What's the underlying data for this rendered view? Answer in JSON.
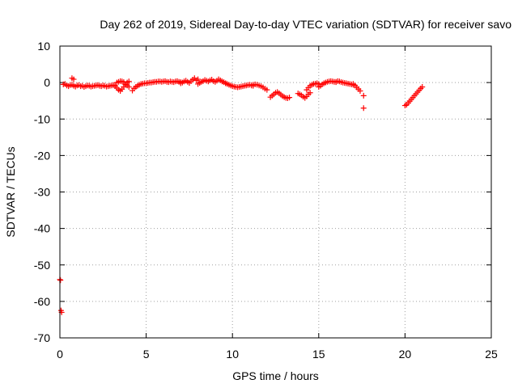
{
  "chart_data": {
    "type": "scatter",
    "title": "Day 262 of 2019, Sidereal Day-to-day VTEC variation (SDTVAR) for receiver savo",
    "xlabel": "GPS time / hours",
    "ylabel": "SDTVAR / TECUs",
    "xlim": [
      0,
      25
    ],
    "ylim": [
      -70,
      10
    ],
    "xticks": [
      0,
      5,
      10,
      15,
      20,
      25
    ],
    "yticks": [
      10,
      0,
      -10,
      -20,
      -30,
      -40,
      -50,
      -60,
      -70
    ],
    "grid": true,
    "legend": "none",
    "marker": "plus",
    "color": "#ff0000",
    "series": [
      {
        "name": "SDTVAR",
        "segments": [
          {
            "x_start": 0.0,
            "x_end": 0.1,
            "y": [
              -54.0,
              -54.2,
              -62.5,
              -63.0
            ],
            "step": 0.05
          },
          {
            "x_start": 0.2,
            "x_end": 3.2,
            "y": [
              -0.5,
              -0.4,
              -0.8,
              -1.0,
              -0.7,
              -0.6,
              -0.9,
              -1.1,
              -0.8,
              -0.7,
              -1.0,
              -0.9,
              -1.2,
              -1.0,
              -0.8,
              -0.9,
              -1.1,
              -1.0,
              -0.9,
              -0.8,
              -0.7,
              -0.9,
              -1.0,
              -0.8,
              -0.9,
              -1.1,
              -1.0,
              -0.9,
              -0.8,
              -0.7,
              -0.9
            ]
          },
          {
            "x_start": 0.7,
            "x_end": 0.8,
            "y": [
              1.2,
              0.9
            ]
          },
          {
            "x_start": 3.2,
            "x_end": 4.0,
            "y": [
              -1.0,
              -1.5,
              -2.0,
              -2.3,
              -1.8,
              -1.2,
              -0.6,
              0.0,
              0.3
            ]
          },
          {
            "x_start": 3.3,
            "x_end": 4.0,
            "y": [
              0.0,
              0.2,
              0.4,
              0.3,
              0.1,
              -0.4,
              -0.8,
              -1.2
            ]
          },
          {
            "x_start": 4.2,
            "x_end": 7.0,
            "y": [
              -2.2,
              -1.6,
              -1.2,
              -0.9,
              -0.6,
              -0.4,
              -0.3,
              -0.2,
              -0.2,
              -0.1,
              0.0,
              0.0,
              0.1,
              0.2,
              0.2,
              0.3,
              0.3,
              0.2,
              0.3,
              0.4,
              0.2,
              0.1,
              0.3,
              0.2,
              0.1,
              0.3,
              0.4,
              0.2,
              0.1
            ]
          },
          {
            "x_start": 7.0,
            "x_end": 8.0,
            "y": [
              -0.2,
              0.0,
              0.3,
              0.5,
              0.2,
              -0.1,
              0.4,
              0.8,
              1.2,
              0.6,
              0.9
            ]
          },
          {
            "x_start": 8.0,
            "x_end": 9.6,
            "y": [
              -0.4,
              -0.1,
              0.2,
              0.4,
              0.7,
              0.5,
              0.3,
              0.6,
              0.8,
              0.4,
              0.2,
              0.5,
              0.9,
              0.6,
              0.3,
              0.1,
              -0.2
            ]
          },
          {
            "x_start": 9.6,
            "x_end": 11.2,
            "y": [
              -0.2,
              -0.4,
              -0.6,
              -0.8,
              -1.0,
              -1.1,
              -1.2,
              -1.3,
              -1.2,
              -1.1,
              -1.0,
              -0.9,
              -0.8,
              -0.7,
              -0.6,
              -0.8,
              -0.9
            ]
          },
          {
            "x_start": 11.2,
            "x_end": 12.0,
            "y": [
              -0.6,
              -0.5,
              -0.6,
              -0.8,
              -1.0,
              -1.3,
              -1.7,
              -2.0
            ]
          },
          {
            "x_start": 12.2,
            "x_end": 13.3,
            "y": [
              -4.0,
              -3.6,
              -3.2,
              -2.8,
              -2.6,
              -2.9,
              -3.3,
              -3.7,
              -4.0,
              -4.2,
              -4.3,
              -4.1
            ]
          },
          {
            "x_start": 13.8,
            "x_end": 14.5,
            "y": [
              -3.0,
              -3.2,
              -3.5,
              -3.9,
              -4.2,
              -3.8,
              -3.2,
              -2.8
            ]
          },
          {
            "x_start": 14.3,
            "x_end": 15.0,
            "y": [
              -2.0,
              -1.4,
              -0.9,
              -0.6,
              -0.4,
              -0.3,
              -0.2,
              -0.4
            ]
          },
          {
            "x_start": 15.0,
            "x_end": 16.0,
            "y": [
              -1.2,
              -0.9,
              -0.5,
              -0.2,
              0.0,
              0.2,
              0.3,
              0.4,
              0.3,
              0.2,
              0.1
            ]
          },
          {
            "x_start": 16.0,
            "x_end": 17.0,
            "y": [
              0.2,
              0.4,
              0.3,
              0.1,
              0.0,
              -0.1,
              -0.2,
              -0.3,
              -0.4,
              -0.5,
              -0.6
            ]
          },
          {
            "x_start": 17.0,
            "x_end": 17.4,
            "y": [
              -0.4,
              -0.8,
              -1.3,
              -1.8,
              -2.3
            ]
          },
          {
            "x_start": 17.6,
            "x_end": 17.6,
            "y": [
              -3.6,
              -7.0
            ]
          },
          {
            "x_start": 20.0,
            "x_end": 21.0,
            "y": [
              -6.3,
              -6.1,
              -5.6,
              -5.1,
              -4.6,
              -4.1,
              -3.6,
              -3.1,
              -2.6,
              -2.1,
              -1.6,
              -1.2
            ]
          }
        ]
      }
    ]
  }
}
